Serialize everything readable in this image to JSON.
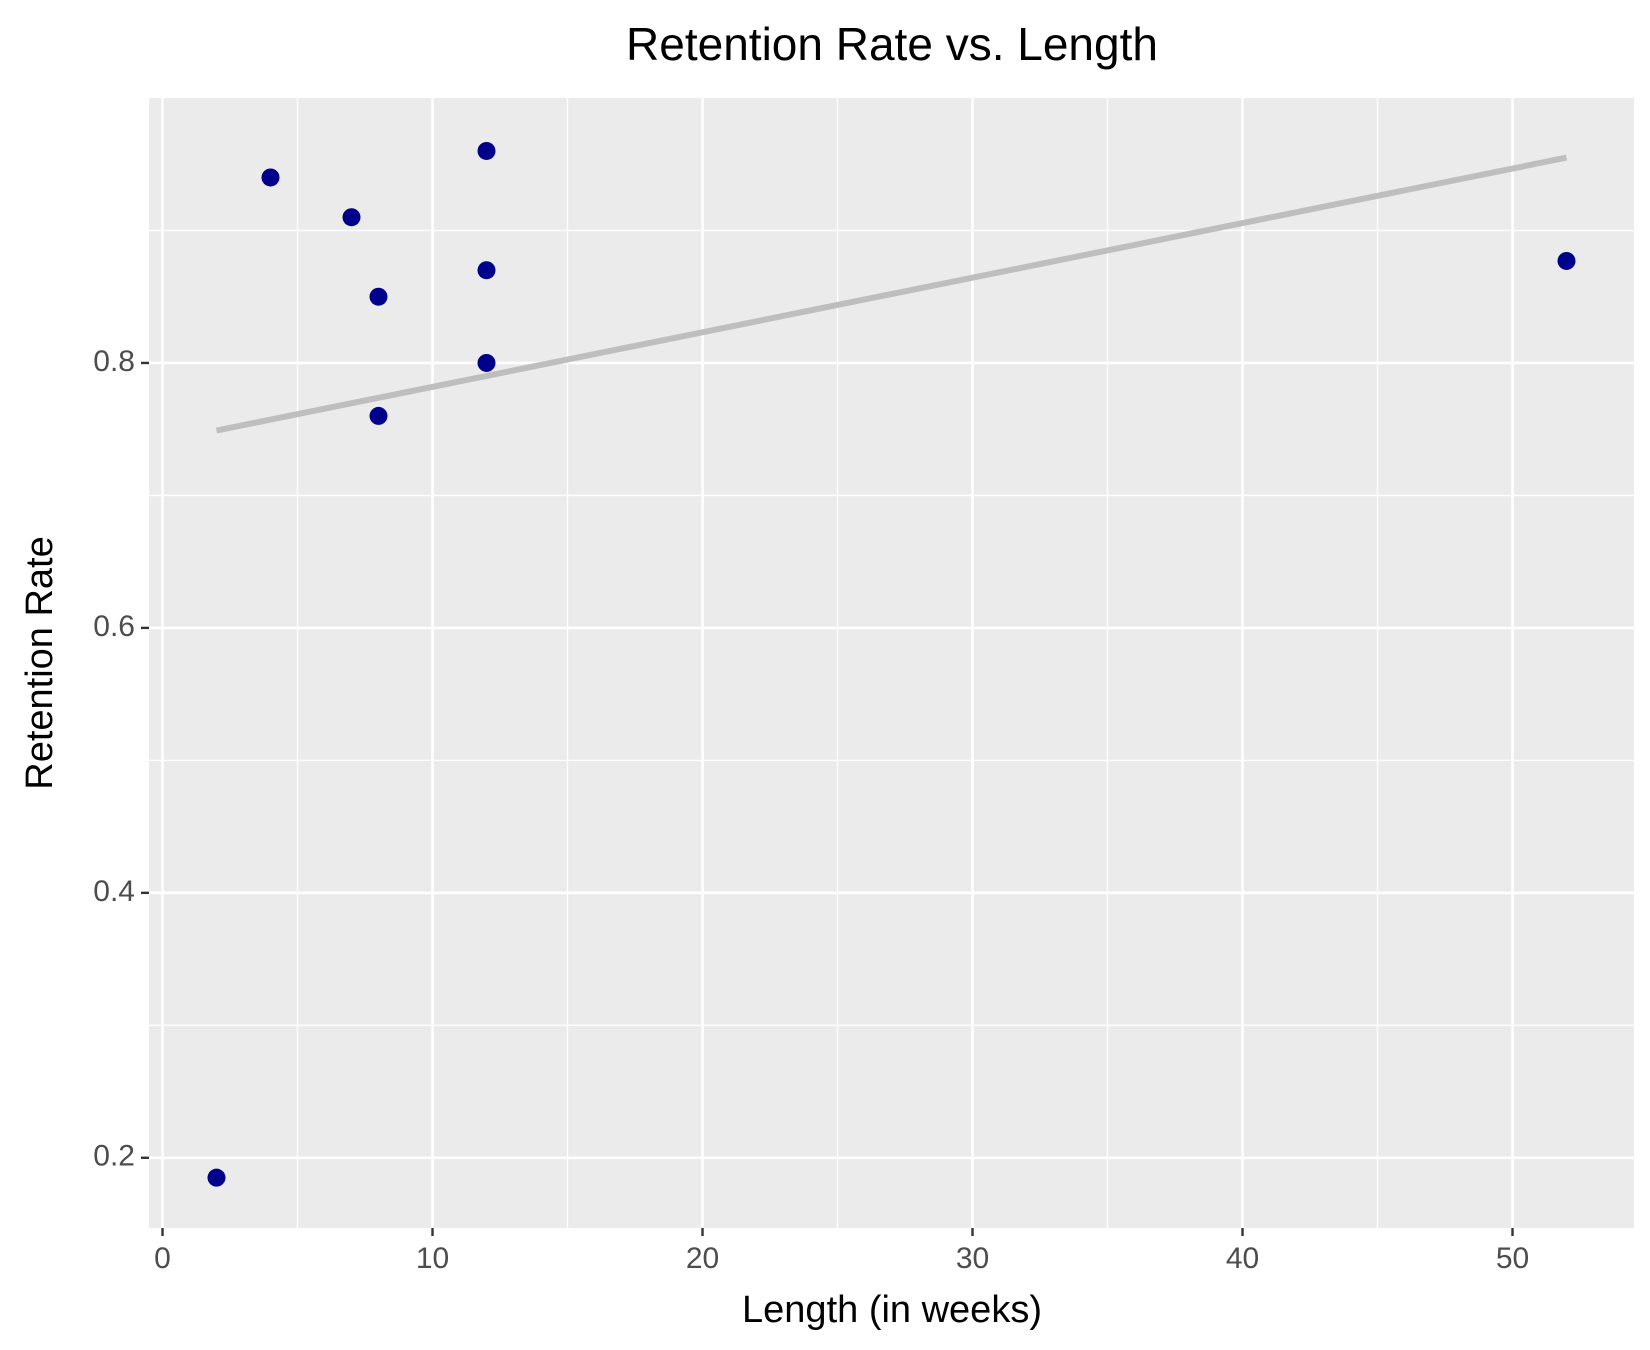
{
  "chart_data": {
    "type": "scatter",
    "title": "Retention Rate vs. Length",
    "x_label": "Length (in weeks)",
    "y_label": "Retention Rate",
    "x": [
      2,
      4,
      7,
      8,
      8,
      12,
      12,
      12,
      52
    ],
    "values": [
      0.185,
      0.94,
      0.91,
      0.85,
      0.76,
      0.96,
      0.87,
      0.8,
      0.877
    ],
    "color": "#00008b",
    "trend": {
      "x": [
        2,
        52
      ],
      "values": [
        0.749,
        0.955
      ],
      "color": "#bebebe"
    },
    "xlim": [
      -0.5,
      54.5
    ],
    "xticks": [
      0,
      10,
      20,
      30,
      40,
      50
    ],
    "x_minor_ticks": [
      5,
      15,
      25,
      35,
      45
    ],
    "ylim": [
      0.147,
      1.0
    ],
    "yticks": [
      0.2,
      0.4,
      0.6,
      0.8
    ],
    "y_minor_ticks": [
      0.3,
      0.5,
      0.7,
      0.9
    ],
    "grid": true
  }
}
